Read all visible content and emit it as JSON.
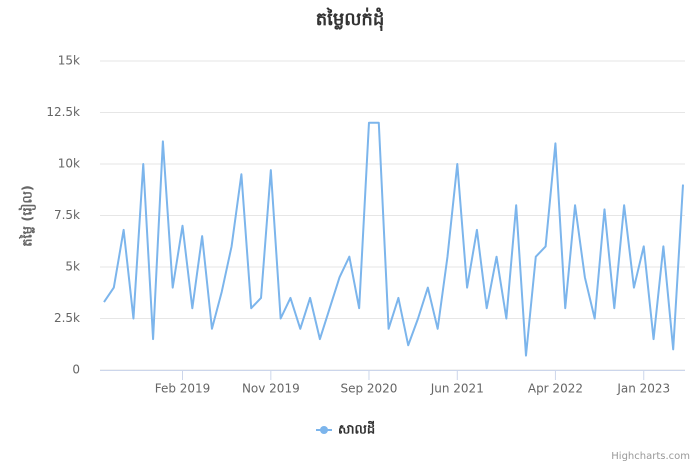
{
  "chart_data": {
    "type": "line",
    "title": "តម្លៃលក់ដុំ",
    "y_axis_label": "តម្លៃ (រៀល)",
    "credits": "Highcharts.com",
    "x": [
      "2018-06",
      "2018-07",
      "2018-08",
      "2018-09",
      "2018-10",
      "2018-11",
      "2018-12",
      "2019-01",
      "2019-02",
      "2019-03",
      "2019-04",
      "2019-05",
      "2019-06",
      "2019-07",
      "2019-08",
      "2019-09",
      "2019-10",
      "2019-11",
      "2019-12",
      "2020-01",
      "2020-02",
      "2020-03",
      "2020-04",
      "2020-05",
      "2020-06",
      "2020-07",
      "2020-08",
      "2020-09",
      "2020-10",
      "2020-11",
      "2020-12",
      "2021-01",
      "2021-02",
      "2021-03",
      "2021-04",
      "2021-05",
      "2021-06",
      "2021-07",
      "2021-08",
      "2021-09",
      "2021-10",
      "2021-11",
      "2021-12",
      "2022-01",
      "2022-02",
      "2022-03",
      "2022-04",
      "2022-05",
      "2022-06",
      "2022-07",
      "2022-08",
      "2022-09",
      "2022-10",
      "2022-11",
      "2022-12",
      "2023-01",
      "2023-02",
      "2023-03",
      "2023-04",
      "2023-05"
    ],
    "series": [
      {
        "name": "សាលដី",
        "color": "#7cb5ec",
        "values": [
          3300,
          4000,
          6800,
          2500,
          10000,
          1500,
          11100,
          4000,
          7000,
          3000,
          6500,
          2000,
          3800,
          6000,
          9500,
          3000,
          3500,
          9700,
          2500,
          3500,
          2000,
          3500,
          1500,
          3000,
          4500,
          5500,
          3000,
          12000,
          12000,
          2000,
          3500,
          1200,
          2500,
          4000,
          2000,
          5500,
          10000,
          4000,
          6800,
          3000,
          5500,
          2500,
          8000,
          700,
          5500,
          6000,
          11000,
          3000,
          8000,
          4500,
          2500,
          7800,
          3000,
          8000,
          4000,
          6000,
          1500,
          6000,
          1000,
          9000
        ]
      }
    ],
    "xlim": [
      "2018-06",
      "2023-05"
    ],
    "xticks": [
      {
        "value": "2019-02",
        "label": "Feb 2019"
      },
      {
        "value": "2019-11",
        "label": "Nov 2019"
      },
      {
        "value": "2020-09",
        "label": "Sep 2020"
      },
      {
        "value": "2021-06",
        "label": "Jun 2021"
      },
      {
        "value": "2022-04",
        "label": "Apr 2022"
      },
      {
        "value": "2023-01",
        "label": "Jan 2023"
      }
    ],
    "ylim": [
      0,
      15000
    ],
    "yticks": [
      0,
      {
        "value": 2500,
        "label": "2.5k"
      },
      {
        "value": 5000,
        "label": "5k"
      },
      {
        "value": 7500,
        "label": "7.5k"
      },
      {
        "value": 10000,
        "label": "10k"
      },
      {
        "value": 12500,
        "label": "12.5k"
      },
      {
        "value": 15000,
        "label": "15k"
      }
    ],
    "grid": true
  }
}
